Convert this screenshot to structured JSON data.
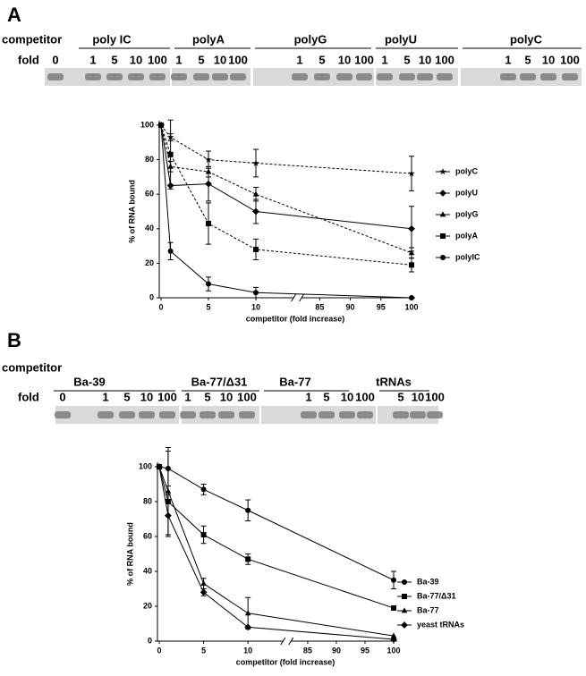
{
  "panels": [
    {
      "label": "A",
      "competitor_label": "competitor",
      "fold_label": "fold",
      "groups": [
        {
          "name": "poly IC",
          "folds": [
            0,
            1,
            5,
            10,
            100
          ]
        },
        {
          "name": "polyA",
          "folds": [
            1,
            5,
            10,
            100
          ]
        },
        {
          "name": "polyG",
          "folds": [
            1,
            5,
            10,
            100
          ]
        },
        {
          "name": "polyU",
          "folds": [
            1,
            5,
            10,
            100
          ]
        },
        {
          "name": "polyC",
          "folds": [
            1,
            5,
            10,
            100
          ]
        }
      ]
    },
    {
      "label": "B",
      "competitor_label": "competitor",
      "fold_label": "fold",
      "groups": [
        {
          "name": "Ba-39",
          "folds": [
            0,
            1,
            5,
            10,
            100
          ]
        },
        {
          "name": "Ba-77/Δ31",
          "folds": [
            1,
            5,
            10,
            100
          ]
        },
        {
          "name": "Ba-77",
          "folds": [
            1,
            5,
            10,
            100
          ]
        },
        {
          "name": "tRNAs",
          "folds": [
            5,
            10,
            100
          ]
        }
      ]
    }
  ],
  "chart_data": [
    {
      "type": "line",
      "x": [
        0,
        1,
        5,
        10,
        100
      ],
      "xlim": [
        0,
        100
      ],
      "xbreak": [
        14,
        82
      ],
      "xticks": [
        0,
        5,
        10,
        85,
        90,
        95,
        100
      ],
      "ylim": [
        0,
        100
      ],
      "yticks": [
        0,
        20,
        40,
        60,
        80,
        100
      ],
      "xlabel": "competitor (fold increase)",
      "ylabel": "% of RNA bound",
      "legend": "right",
      "series": [
        {
          "name": "polyC",
          "color": "#000000",
          "marker": "star",
          "dashed": true,
          "values": [
            100,
            93,
            80,
            78,
            72
          ],
          "errors": [
            null,
            2,
            5,
            8,
            10
          ]
        },
        {
          "name": "polyU",
          "color": "#000000",
          "marker": "diamond",
          "dashed": false,
          "values": [
            100,
            65,
            66,
            50,
            40
          ],
          "errors": [
            null,
            null,
            10,
            7,
            13
          ]
        },
        {
          "name": "polyG",
          "color": "#000000",
          "marker": "triangle",
          "dashed": true,
          "values": [
            100,
            76,
            73,
            60,
            26
          ],
          "errors": [
            null,
            3,
            3,
            4,
            3
          ]
        },
        {
          "name": "polyA",
          "color": "#000000",
          "marker": "square",
          "dashed": true,
          "values": [
            100,
            83,
            43,
            28,
            19
          ],
          "errors": [
            null,
            20,
            12,
            6,
            4
          ]
        },
        {
          "name": "polyIC",
          "color": "#000000",
          "marker": "circle",
          "dashed": false,
          "values": [
            100,
            27,
            8,
            3,
            0
          ],
          "errors": [
            null,
            5,
            4,
            3,
            null
          ]
        }
      ]
    },
    {
      "type": "line",
      "x": [
        0,
        1,
        5,
        10,
        100
      ],
      "xlim": [
        0,
        100
      ],
      "xbreak": [
        14,
        82
      ],
      "xticks": [
        0,
        5,
        10,
        85,
        90,
        95,
        100
      ],
      "ylim": [
        0,
        100
      ],
      "yticks": [
        0,
        20,
        40,
        60,
        80,
        100
      ],
      "xlabel": "competitor (fold increase)",
      "ylabel": "% of RNA bound",
      "legend": "lower right",
      "series": [
        {
          "name": "Ba-39",
          "color": "#000000",
          "marker": "circle",
          "dashed": false,
          "values": [
            100,
            99,
            87,
            75,
            35
          ],
          "errors": [
            null,
            10,
            3,
            6,
            5
          ]
        },
        {
          "name": "Ba-77/Δ31",
          "color": "#000000",
          "marker": "square",
          "dashed": false,
          "values": [
            100,
            80,
            61,
            47,
            19
          ],
          "errors": [
            null,
            null,
            5,
            3,
            null
          ]
        },
        {
          "name": "Ba-77",
          "color": "#000000",
          "marker": "triangle",
          "dashed": false,
          "values": [
            100,
            86,
            33,
            16,
            3
          ],
          "errors": [
            null,
            25,
            3,
            9,
            null
          ]
        },
        {
          "name": "yeast tRNAs",
          "color": "#000000",
          "marker": "diamond",
          "dashed": false,
          "values": [
            100,
            72,
            28,
            8,
            1
          ],
          "errors": [
            null,
            12,
            2,
            null,
            null
          ]
        }
      ]
    }
  ]
}
